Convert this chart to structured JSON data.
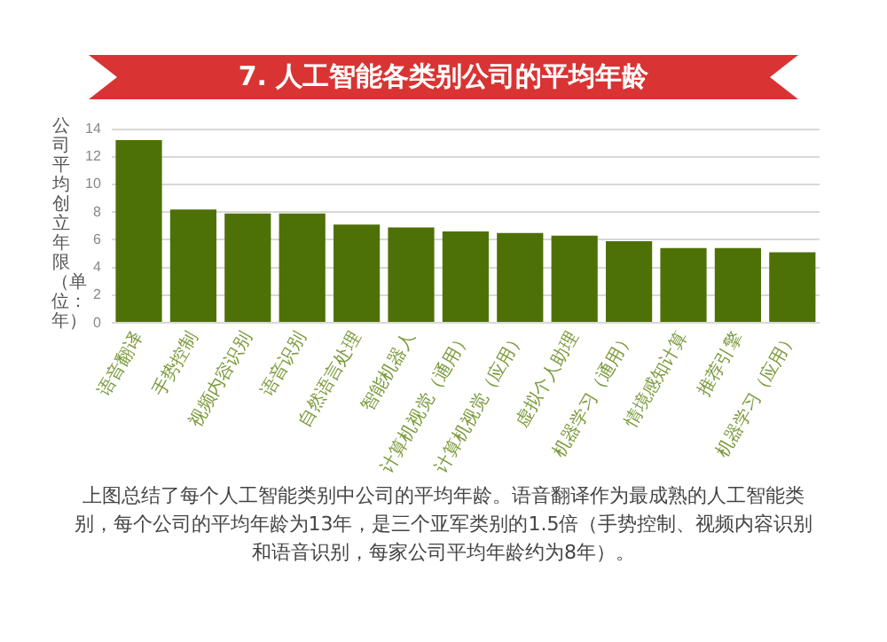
{
  "chart_data": {
    "type": "bar",
    "title": "7. 人工智能各类别公司的平均年龄",
    "ylabel": "公司平均创立年限（单位：年）",
    "categories": [
      "语音翻译",
      "手势控制",
      "视频内容识别",
      "语音识别",
      "自然语言处理",
      "智能机器人",
      "计算机视觉（通用）",
      "计算机视觉（应用）",
      "虚拟个人助理",
      "机器学习（通用）",
      "情境感知计算",
      "推荐引擎",
      "机器学习（应用）"
    ],
    "values": [
      13.2,
      8.2,
      7.9,
      7.9,
      7.1,
      6.9,
      6.6,
      6.5,
      6.3,
      5.9,
      5.4,
      5.4,
      5.1
    ],
    "color": "#4e7107",
    "ylim": [
      0,
      14
    ],
    "yticks": [
      0,
      2,
      4,
      6,
      8,
      10,
      12,
      14
    ],
    "grid": "y",
    "annotations": [
      "上图总结了每个人工智能类别中公司的平均年龄。语音翻译作为最成熟的人工智能类别，每个公司的平均年龄为13年，是三个亚军类别的1.5倍（手势控制、视频内容识别和语音识别，每家公司平均年龄约为8年）。"
    ]
  }
}
